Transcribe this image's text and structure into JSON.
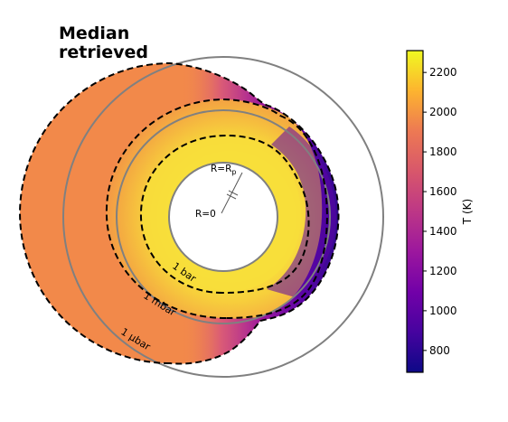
{
  "title_lines": [
    "Median",
    "retrieved"
  ],
  "inner_labels": {
    "surface": "R=R",
    "surface_subscript": "p",
    "center": "R=0"
  },
  "pressure_labels": {
    "bar": "1 bar",
    "mbar": "1 mbar",
    "ubar": "1 μbar"
  },
  "colorbar": {
    "label": "T (K)",
    "ticks": [
      "800",
      "1000",
      "1200",
      "1400",
      "1600",
      "1800",
      "2000",
      "2200"
    ],
    "tick_values": [
      800,
      1000,
      1200,
      1400,
      1600,
      1800,
      2000,
      2200
    ],
    "range": [
      690,
      2310
    ],
    "colormap": "plasma"
  },
  "colors": {
    "dayside": "#f2894a",
    "hot_ring": "#f9d93a",
    "nightside": "#2d0b8c",
    "grey_circle": "#808080"
  }
}
